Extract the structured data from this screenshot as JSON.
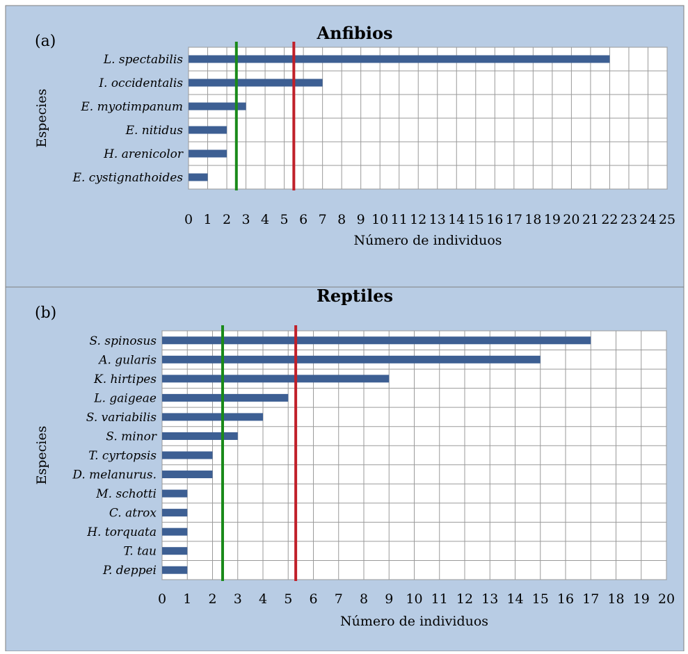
{
  "chart_data": [
    {
      "panel_label": "(a)",
      "type": "bar",
      "orientation": "horizontal",
      "title": "Anfibios",
      "xlabel": "Número de  individuos",
      "ylabel": "Especies",
      "categories": [
        "L. spectabilis",
        "I. occidentalis",
        "E. myotimpanum",
        "E. nitidus",
        "H. arenicolor",
        "E. cystignathoides"
      ],
      "values": [
        22,
        7,
        3,
        2,
        2,
        1
      ],
      "xlim": [
        0,
        25
      ],
      "xticks": [
        "0",
        "1",
        "2",
        "3",
        "4",
        "5",
        "6",
        "7",
        "8",
        "9",
        "10",
        "11",
        "12",
        "13",
        "14",
        "15",
        "16",
        "17",
        "18",
        "19",
        "20",
        "21",
        "22",
        "23",
        "24",
        "25"
      ],
      "reference_lines": [
        {
          "color": "green",
          "value": 2.5
        },
        {
          "color": "red",
          "value": 5.5
        }
      ],
      "grid": true,
      "bar_color": "#3d5f93"
    },
    {
      "panel_label": "(b)",
      "type": "bar",
      "orientation": "horizontal",
      "title": "Reptiles",
      "xlabel": "Número de individuos",
      "ylabel": "Especies",
      "categories": [
        "S. spinosus",
        "A. gularis",
        "K. hirtipes",
        "L. gaigeae",
        "S. variabilis",
        "S. minor",
        "T. cyrtopsis",
        "D. melanurus.",
        "M. schotti",
        "C. atrox",
        "H. torquata",
        "T. tau",
        "P. deppei"
      ],
      "values": [
        17,
        15,
        9,
        5,
        4,
        3,
        2,
        2,
        1,
        1,
        1,
        1,
        1
      ],
      "xlim": [
        0,
        20
      ],
      "xticks": [
        "0",
        "1",
        "2",
        "3",
        "4",
        "5",
        "6",
        "7",
        "8",
        "9",
        "10",
        "11",
        "12",
        "13",
        "14",
        "15",
        "16",
        "17",
        "18",
        "19",
        "20"
      ],
      "reference_lines": [
        {
          "color": "green",
          "value": 2.4
        },
        {
          "color": "red",
          "value": 5.3
        }
      ],
      "grid": true,
      "bar_color": "#3d5f93"
    }
  ],
  "colors": {
    "background": "#b8cce4",
    "bar": "#3d5f93",
    "green_line": "#1a8a1a",
    "red_line": "#c0202a"
  }
}
